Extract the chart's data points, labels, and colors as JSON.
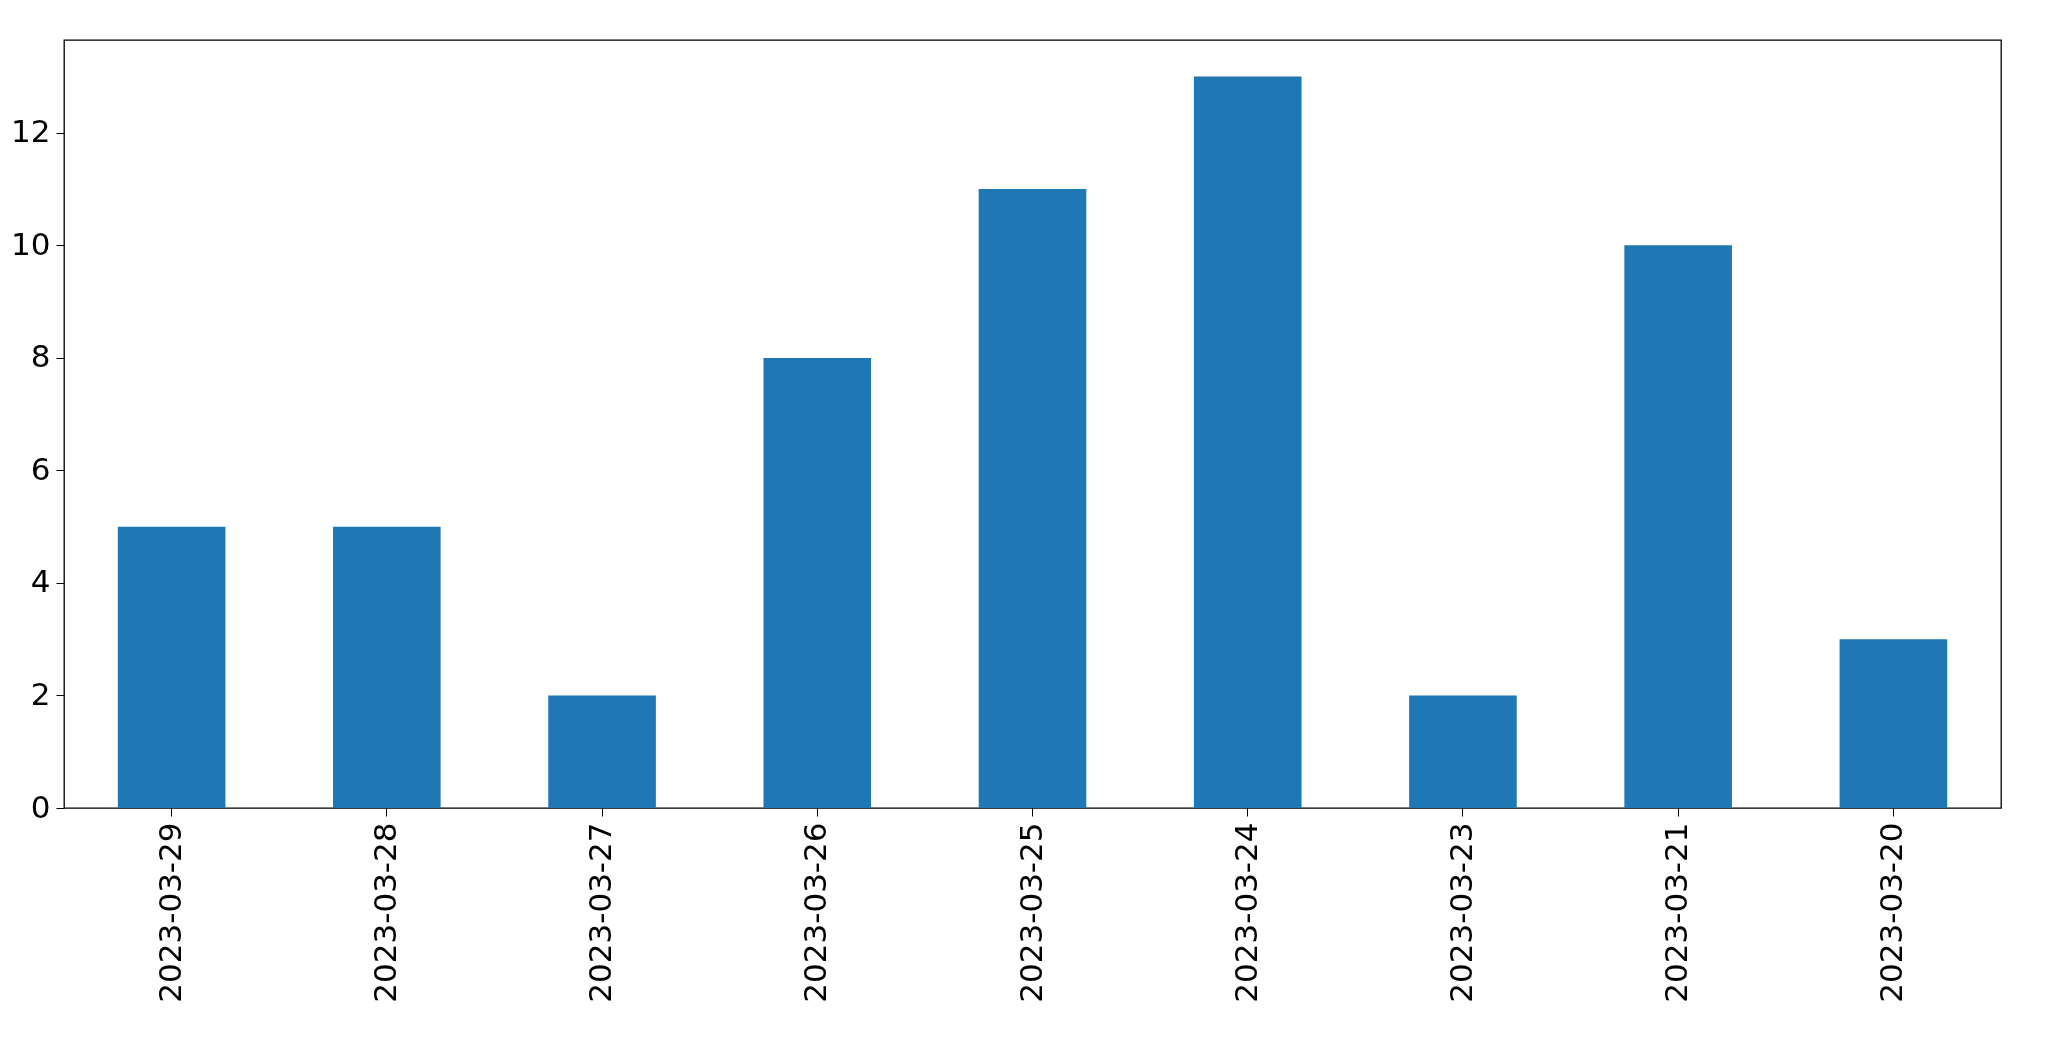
{
  "chart_data": {
    "type": "bar",
    "categories": [
      "2023-03-29",
      "2023-03-28",
      "2023-03-27",
      "2023-03-26",
      "2023-03-25",
      "2023-03-24",
      "2023-03-23",
      "2023-03-21",
      "2023-03-20"
    ],
    "values": [
      5,
      5,
      2,
      8,
      11,
      13,
      2,
      10,
      3
    ],
    "color": "#1f77b4",
    "ylim": [
      0,
      13.65
    ],
    "yticks": [
      0,
      2,
      4,
      6,
      8,
      10,
      12
    ],
    "grid": false
  }
}
